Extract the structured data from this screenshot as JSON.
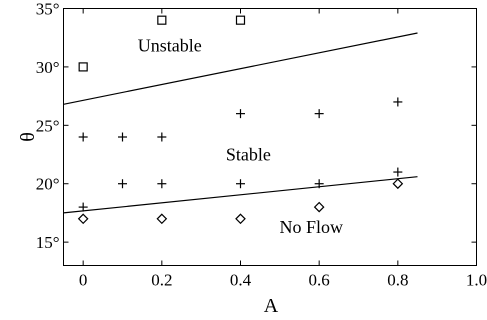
{
  "chart_data": {
    "type": "scatter",
    "title": "",
    "xlabel": "A",
    "ylabel": "θ",
    "xlim": [
      -0.05,
      1.0
    ],
    "ylim": [
      13,
      35
    ],
    "grid": false,
    "x_ticks": [
      {
        "value": 0,
        "label": "0"
      },
      {
        "value": 0.2,
        "label": "0.2"
      },
      {
        "value": 0.4,
        "label": "0.4"
      },
      {
        "value": 0.6,
        "label": "0.6"
      },
      {
        "value": 0.8,
        "label": "0.8"
      },
      {
        "value": 1.0,
        "label": "1.0"
      }
    ],
    "y_ticks": [
      {
        "value": 15,
        "label": "15°"
      },
      {
        "value": 20,
        "label": "20°"
      },
      {
        "value": 25,
        "label": "25°"
      },
      {
        "value": 30,
        "label": "30°"
      },
      {
        "value": 35,
        "label": "35°"
      }
    ],
    "series": [
      {
        "marker": "square",
        "points": [
          [
            0,
            30
          ],
          [
            0.2,
            34
          ],
          [
            0.4,
            34
          ]
        ]
      },
      {
        "marker": "plus",
        "points": [
          [
            0,
            24
          ],
          [
            0,
            18
          ],
          [
            0.1,
            24
          ],
          [
            0.1,
            20
          ],
          [
            0.2,
            24
          ],
          [
            0.2,
            20
          ],
          [
            0.4,
            26
          ],
          [
            0.4,
            20
          ],
          [
            0.6,
            26
          ],
          [
            0.6,
            20
          ],
          [
            0.8,
            27
          ],
          [
            0.8,
            21
          ]
        ]
      },
      {
        "marker": "diamond",
        "points": [
          [
            0,
            17
          ],
          [
            0.2,
            17
          ],
          [
            0.4,
            17
          ],
          [
            0.6,
            18
          ],
          [
            0.8,
            20
          ]
        ]
      }
    ],
    "lines": [
      {
        "name": "upper-boundary",
        "x": [
          -0.05,
          0.85
        ],
        "y": [
          26.8,
          32.9
        ]
      },
      {
        "name": "lower-boundary",
        "x": [
          -0.05,
          0.85
        ],
        "y": [
          17.5,
          20.6
        ]
      }
    ],
    "annotations": [
      {
        "text": "Unstable",
        "x": 0.22,
        "y": 31.3
      },
      {
        "text": "Stable",
        "x": 0.42,
        "y": 22.0
      },
      {
        "text": "No Flow",
        "x": 0.58,
        "y": 15.8
      }
    ]
  }
}
